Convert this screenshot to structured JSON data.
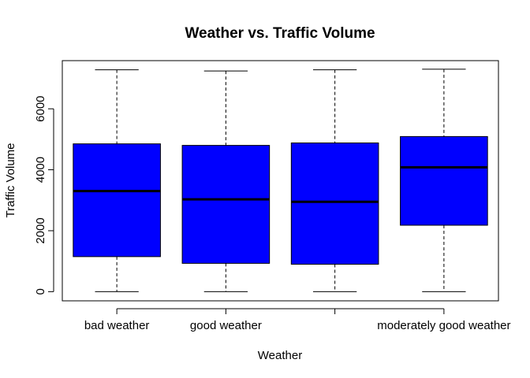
{
  "chart_data": {
    "type": "boxplot",
    "title": "Weather vs. Traffic Volume",
    "xlabel": "Weather",
    "ylabel": "Traffic Volume",
    "categories": [
      "bad weather",
      "good weather",
      "",
      "moderately good weather"
    ],
    "boxes": [
      {
        "category": "bad weather",
        "min": 0,
        "q1": 1150,
        "median": 3300,
        "q3": 4850,
        "max": 7280
      },
      {
        "category": "good weather",
        "min": 0,
        "q1": 930,
        "median": 3030,
        "q3": 4800,
        "max": 7240
      },
      {
        "category": "",
        "min": 0,
        "q1": 900,
        "median": 2950,
        "q3": 4880,
        "max": 7280
      },
      {
        "category": "moderately good weather",
        "min": 0,
        "q1": 2180,
        "median": 4080,
        "q3": 5090,
        "max": 7300
      }
    ],
    "yticks": [
      0,
      2000,
      4000,
      6000
    ],
    "ylim": [
      -300,
      7580
    ],
    "grid": false,
    "box_color": "#0000ff",
    "outline_color": "#000000"
  }
}
